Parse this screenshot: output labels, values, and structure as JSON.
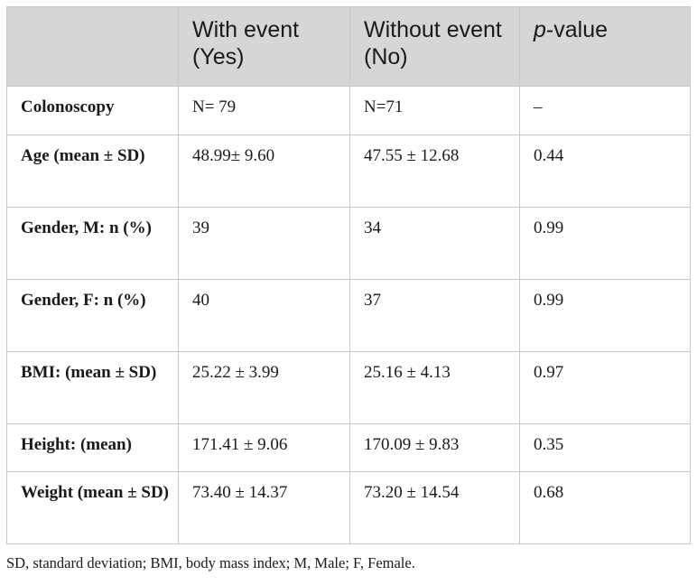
{
  "table": {
    "headers": {
      "row_label": "",
      "with_event": "With event (Yes)",
      "without_event": "Without event (No)",
      "p_value_italic": "p",
      "p_value_rest": "-value"
    },
    "rows": [
      {
        "label": "Colonoscopy",
        "with_event": "N= 79",
        "without_event": "N=71",
        "p_value": "–"
      },
      {
        "label": "Age (mean ± SD)",
        "with_event": "48.99± 9.60",
        "without_event": "47.55 ± 12.68",
        "p_value": "0.44"
      },
      {
        "label": "Gender, M: n (%)",
        "with_event": "39",
        "without_event": "34",
        "p_value": "0.99"
      },
      {
        "label": "Gender, F: n (%)",
        "with_event": "40",
        "without_event": "37",
        "p_value": "0.99"
      },
      {
        "label": "BMI: (mean ± SD)",
        "with_event": "25.22 ± 3.99",
        "without_event": "25.16 ± 4.13",
        "p_value": "0.97"
      },
      {
        "label": "Height: (mean)",
        "with_event": "171.41 ± 9.06",
        "without_event": "170.09 ± 9.83",
        "p_value": "0.35"
      },
      {
        "label": "Weight (mean ± SD)",
        "with_event": "73.40 ± 14.37",
        "without_event": "73.20 ± 14.54",
        "p_value": "0.68"
      }
    ]
  },
  "footnote": "SD, standard deviation; BMI, body mass index; M, Male; F, Female."
}
